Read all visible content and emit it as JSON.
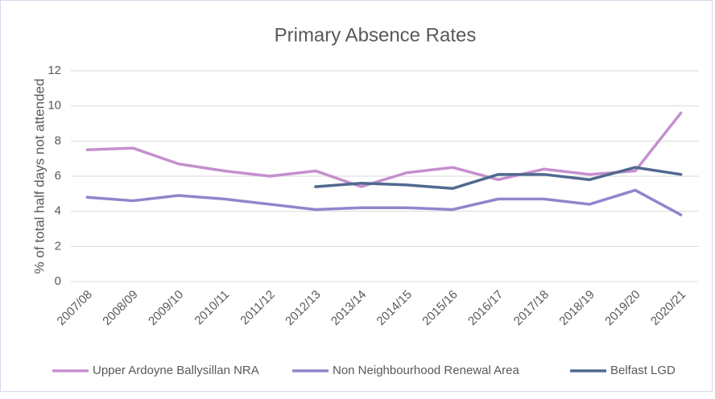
{
  "chart_data": {
    "type": "line",
    "title": "Primary Absence Rates",
    "ylabel": "% of total half days not attended",
    "categories": [
      "2007/08",
      "2008/09",
      "2009/10",
      "2010/11",
      "2011/12",
      "2012/13",
      "2013/14",
      "2014/15",
      "2015/16",
      "2016/17",
      "2017/18",
      "2018/19",
      "2019/20",
      "2020/21"
    ],
    "series": [
      {
        "name": "Upper Ardoyne Ballysillan NRA",
        "color": "#c58fce",
        "values": [
          7.5,
          7.6,
          6.7,
          6.3,
          6.0,
          6.3,
          5.4,
          6.2,
          6.5,
          5.8,
          6.4,
          6.1,
          6.3,
          9.6
        ]
      },
      {
        "name": "Non Neighbourhood Renewal Area",
        "color": "#8f86cc",
        "values": [
          4.8,
          4.6,
          4.9,
          4.7,
          4.4,
          4.1,
          4.2,
          4.2,
          4.1,
          4.7,
          4.7,
          4.4,
          5.2,
          3.8
        ]
      },
      {
        "name": "Belfast LGD",
        "color": "#50698f",
        "values": [
          null,
          null,
          null,
          null,
          null,
          5.4,
          5.6,
          5.5,
          5.3,
          6.1,
          6.1,
          5.8,
          6.5,
          6.1
        ]
      }
    ],
    "ylim": [
      0,
      12
    ],
    "yticks": [
      0,
      2,
      4,
      6,
      8,
      10,
      12
    ],
    "grid": true,
    "legend": "bottom"
  }
}
